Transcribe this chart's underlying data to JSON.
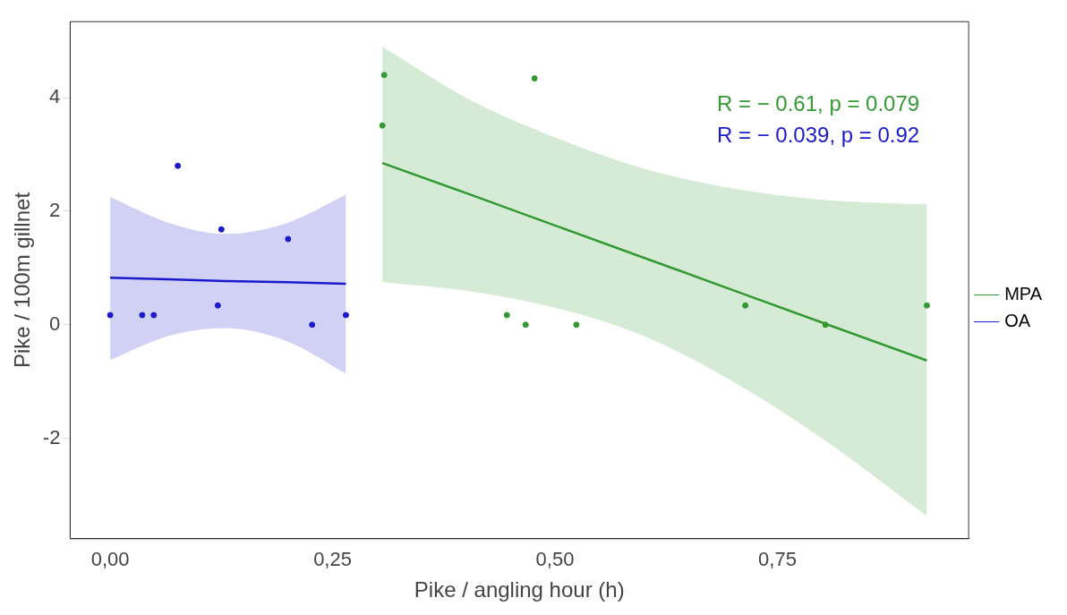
{
  "chart_data": {
    "type": "scatter",
    "xlabel": "Pike / angling hour (h)",
    "ylabel": "Pike / 100m gillnet",
    "xlim": [
      -0.045,
      0.965
    ],
    "ylim": [
      -3.77,
      5.34
    ],
    "xticks": [
      {
        "value": 0,
        "label": "0,00"
      },
      {
        "value": 0.25,
        "label": "0,25"
      },
      {
        "value": 0.5,
        "label": "0,50"
      },
      {
        "value": 0.75,
        "label": "0,75"
      }
    ],
    "yticks": [
      -2,
      0,
      2,
      4
    ],
    "grid": false,
    "legend": "right",
    "marker": "circle",
    "annotations": [
      "R = − 0.61, p = 0.079",
      "R = − 0.039, p = 0.92"
    ],
    "series": [
      {
        "name": "MPA",
        "color": "#339933",
        "x": [
          0.308,
          0.306,
          0.477,
          0.446,
          0.467,
          0.524,
          0.714,
          0.804,
          0.918
        ],
        "values": [
          4.4,
          3.51,
          4.34,
          0.17,
          0,
          0,
          0.34,
          0,
          0.34
        ]
      },
      {
        "name": "OA",
        "color": "#1a1acc",
        "x": [
          0,
          0.036,
          0.049,
          0.076,
          0.121,
          0.125,
          0.2,
          0.227,
          0.265
        ],
        "values": [
          0.17,
          0.17,
          0.17,
          2.8,
          0.34,
          1.68,
          1.51,
          0,
          0.17
        ]
      },
      {
        "type": "line",
        "marker": "none",
        "color": "#339933",
        "x": [
          0.306,
          0.4,
          0.5,
          0.6,
          0.7,
          0.8,
          0.918
        ],
        "values": [
          2.85,
          2.32,
          1.75,
          1.18,
          0.61,
          0.04,
          -0.63
        ],
        "lower": [
          0.75,
          0.6,
          0.3,
          -0.2,
          -1.0,
          -2.0,
          -3.37
        ],
        "upper": [
          4.9,
          4.0,
          3.3,
          2.75,
          2.4,
          2.2,
          2.12
        ]
      },
      {
        "type": "line",
        "marker": "none",
        "color": "#1a1acc",
        "x": [
          0,
          0.065,
          0.13,
          0.2,
          0.265
        ],
        "values": [
          0.83,
          0.8,
          0.77,
          0.75,
          0.72
        ],
        "lower": [
          -0.62,
          -0.2,
          -0.06,
          -0.3,
          -0.86
        ],
        "upper": [
          2.25,
          1.8,
          1.6,
          1.8,
          2.29
        ]
      }
    ]
  }
}
